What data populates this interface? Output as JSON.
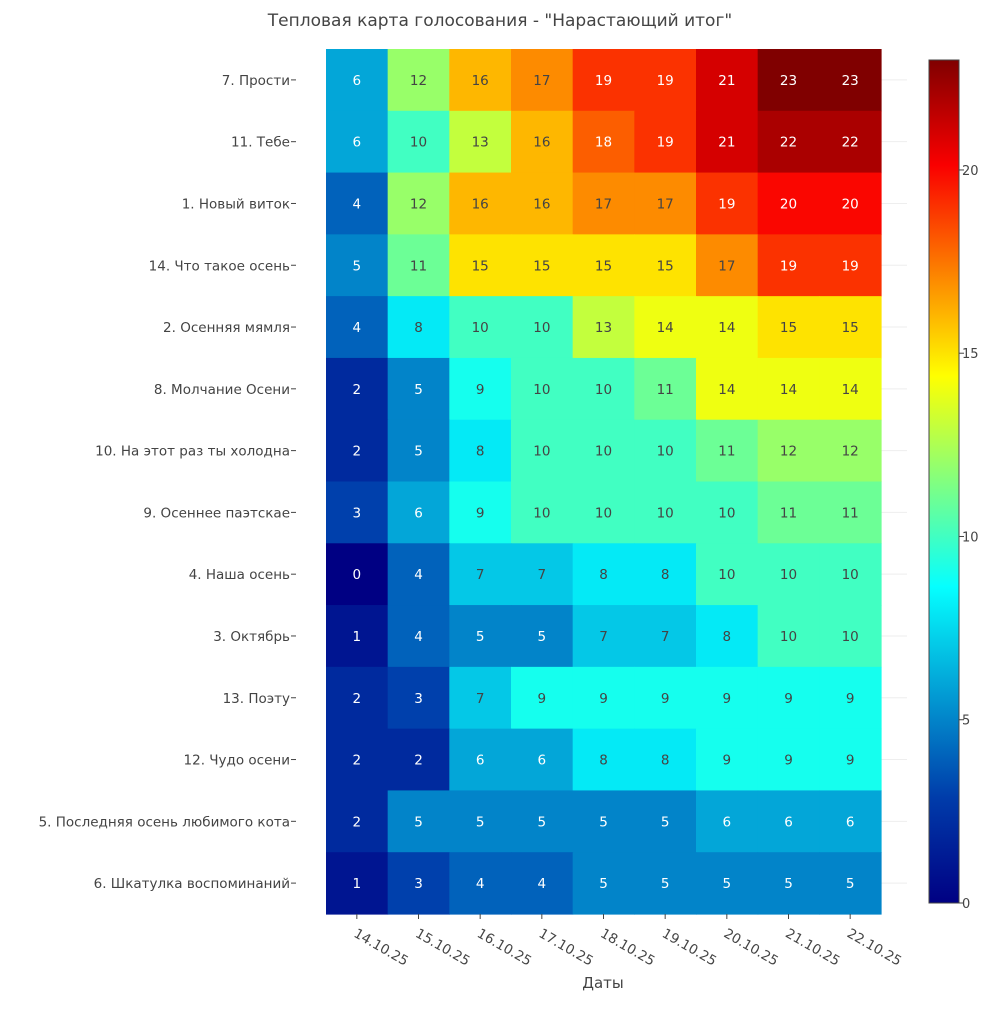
{
  "chart_data": {
    "type": "heatmap",
    "title": "Тепловая карта голосования - \"Нарастающий итог\"",
    "xlabel": "Даты",
    "ylabel": "",
    "x": [
      "14.10.25",
      "15.10.25",
      "16.10.25",
      "17.10.25",
      "18.10.25",
      "19.10.25",
      "20.10.25",
      "21.10.25",
      "22.10.25"
    ],
    "y": [
      "7. Прости",
      "11. Тебе",
      "1. Новый виток",
      "14. Что такое осень",
      "2. Осенняя мямля",
      "8. Молчание Осени",
      "10. На этот раз ты холодна",
      "9. Осеннее паэтскае",
      "4. Наша осень",
      "3. Октябрь",
      "13. Поэту",
      "12. Чудо осени",
      "5. Последняя осень любимого кота",
      "6. Шкатулка воспоминаний"
    ],
    "values": [
      [
        6,
        12,
        16,
        17,
        19,
        19,
        21,
        23,
        23
      ],
      [
        6,
        10,
        13,
        16,
        18,
        19,
        21,
        22,
        22
      ],
      [
        4,
        12,
        16,
        16,
        17,
        17,
        19,
        20,
        20
      ],
      [
        5,
        11,
        15,
        15,
        15,
        15,
        17,
        19,
        19
      ],
      [
        4,
        8,
        10,
        10,
        13,
        14,
        14,
        15,
        15
      ],
      [
        2,
        5,
        9,
        10,
        10,
        11,
        14,
        14,
        14
      ],
      [
        2,
        5,
        8,
        10,
        10,
        10,
        11,
        12,
        12
      ],
      [
        3,
        6,
        9,
        10,
        10,
        10,
        10,
        11,
        11
      ],
      [
        0,
        4,
        7,
        7,
        8,
        8,
        10,
        10,
        10
      ],
      [
        1,
        4,
        5,
        5,
        7,
        7,
        8,
        10,
        10
      ],
      [
        2,
        3,
        7,
        9,
        9,
        9,
        9,
        9,
        9
      ],
      [
        2,
        2,
        6,
        6,
        8,
        8,
        9,
        9,
        9
      ],
      [
        2,
        5,
        5,
        5,
        5,
        5,
        6,
        6,
        6
      ],
      [
        1,
        3,
        4,
        4,
        5,
        5,
        5,
        5,
        5
      ]
    ],
    "zlim": [
      0,
      23
    ],
    "colorbar_ticks": [
      0,
      5,
      10,
      15,
      20
    ],
    "colorscale": "Jet"
  }
}
